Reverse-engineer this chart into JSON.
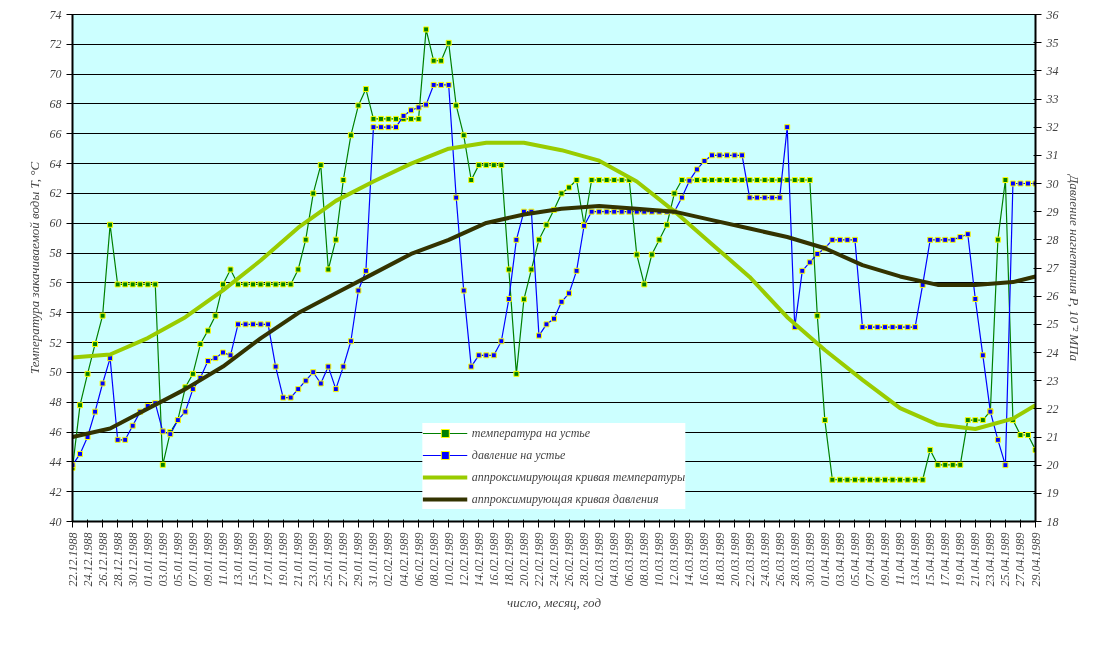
{
  "chart_data": {
    "type": "line",
    "xlabel": "число, месяц, год",
    "ylabel": "Температура закачиваемой воды T, °C",
    "y2label": "Давление нагнетания P, 10⁻² МПа",
    "x": [
      "1988-12-22",
      "1988-12-23",
      "1988-12-24",
      "1988-12-25",
      "1988-12-26",
      "1988-12-27",
      "1988-12-28",
      "1988-12-29",
      "1988-12-30",
      "1988-12-31",
      "1989-01-01",
      "1989-01-02",
      "1989-01-03",
      "1989-01-04",
      "1989-01-05",
      "1989-01-06",
      "1989-01-07",
      "1989-01-08",
      "1989-01-09",
      "1989-01-10",
      "1989-01-11",
      "1989-01-12",
      "1989-01-13",
      "1989-01-14",
      "1989-01-15",
      "1989-01-16",
      "1989-01-17",
      "1989-01-18",
      "1989-01-19",
      "1989-01-20",
      "1989-01-21",
      "1989-01-22",
      "1989-01-23",
      "1989-01-24",
      "1989-01-25",
      "1989-01-26",
      "1989-01-27",
      "1989-01-28",
      "1989-01-29",
      "1989-01-30",
      "1989-01-31",
      "1989-02-01",
      "1989-02-02",
      "1989-02-03",
      "1989-02-04",
      "1989-02-05",
      "1989-02-06",
      "1989-02-07",
      "1989-02-08",
      "1989-02-09",
      "1989-02-10",
      "1989-02-11",
      "1989-02-12",
      "1989-02-13",
      "1989-02-14",
      "1989-02-15",
      "1989-02-16",
      "1989-02-17",
      "1989-02-18",
      "1989-02-19",
      "1989-02-20",
      "1989-02-21",
      "1989-02-22",
      "1989-02-23",
      "1989-02-24",
      "1989-02-25",
      "1989-02-26",
      "1989-02-27",
      "1989-02-28",
      "1989-03-01",
      "1989-03-02",
      "1989-03-03",
      "1989-03-04",
      "1989-03-05",
      "1989-03-06",
      "1989-03-07",
      "1989-03-08",
      "1989-03-09",
      "1989-03-10",
      "1989-03-11",
      "1989-03-12",
      "1989-03-13",
      "1989-03-14",
      "1989-03-15",
      "1989-03-16",
      "1989-03-17",
      "1989-03-18",
      "1989-03-19",
      "1989-03-20",
      "1989-03-21",
      "1989-03-22",
      "1989-03-23",
      "1989-03-24",
      "1989-03-25",
      "1989-03-26",
      "1989-03-27",
      "1989-03-28",
      "1989-03-29",
      "1989-03-30",
      "1989-03-31",
      "1989-04-01",
      "1989-04-02",
      "1989-04-03",
      "1989-04-04",
      "1989-04-05",
      "1989-04-06",
      "1989-04-07",
      "1989-04-08",
      "1989-04-09",
      "1989-04-10",
      "1989-04-11",
      "1989-04-12",
      "1989-04-13",
      "1989-04-14",
      "1989-04-15",
      "1989-04-16",
      "1989-04-17",
      "1989-04-18",
      "1989-04-19",
      "1989-04-20",
      "1989-04-21",
      "1989-04-22",
      "1989-04-23",
      "1989-04-24",
      "1989-04-25",
      "1989-04-26",
      "1989-04-27",
      "1989-04-28",
      "1989-04-29"
    ],
    "series": [
      {
        "name": "температура на устье",
        "color": "#008000",
        "marker": "square",
        "values": [
          43.6,
          47.8,
          49.9,
          51.9,
          53.8,
          59.9,
          55.9,
          55.9,
          55.9,
          55.9,
          55.9,
          55.9,
          43.8,
          46.0,
          46.8,
          49.0,
          49.9,
          51.9,
          52.8,
          53.8,
          55.9,
          56.9,
          55.9,
          55.9,
          55.9,
          55.9,
          55.9,
          55.9,
          55.9,
          55.9,
          56.9,
          58.9,
          62.0,
          63.9,
          56.9,
          58.9,
          62.9,
          65.9,
          67.9,
          69.0,
          67.0,
          67.0,
          67.0,
          67.0,
          67.0,
          67.0,
          67.0,
          73.0,
          70.9,
          70.9,
          72.1,
          67.9,
          65.9,
          62.9,
          63.9,
          63.9,
          63.9,
          63.9,
          56.9,
          49.9,
          54.9,
          56.9,
          58.9,
          59.9,
          60.9,
          62.0,
          62.4,
          62.9,
          59.9,
          62.9,
          62.9,
          62.9,
          62.9,
          62.9,
          62.9,
          57.9,
          55.9,
          57.9,
          58.9,
          59.9,
          62.0,
          62.9,
          62.9,
          62.9,
          62.9,
          62.9,
          62.9,
          62.9,
          62.9,
          62.9,
          62.9,
          62.9,
          62.9,
          62.9,
          62.9,
          62.9,
          62.9,
          62.9,
          62.9,
          53.8,
          46.8,
          42.8,
          42.8,
          42.8,
          42.8,
          42.8,
          42.8,
          42.8,
          42.8,
          42.8,
          42.8,
          42.8,
          42.8,
          42.8,
          44.8,
          43.8,
          43.8,
          43.8,
          43.8,
          46.8,
          46.8,
          46.8,
          47.4,
          58.9,
          62.9,
          46.8,
          45.8,
          45.8,
          44.8
        ]
      },
      {
        "name": "давление на устье",
        "color": "#0000ff",
        "marker": "square",
        "axis": "y2",
        "values": [
          20.0,
          20.4,
          21.0,
          21.9,
          22.9,
          23.8,
          20.9,
          20.9,
          21.4,
          21.9,
          22.1,
          22.2,
          21.2,
          21.1,
          21.6,
          21.9,
          22.7,
          23.1,
          23.7,
          23.8,
          24.0,
          23.9,
          25.0,
          25.0,
          25.0,
          25.0,
          25.0,
          23.5,
          22.4,
          22.4,
          22.7,
          23.0,
          23.3,
          22.9,
          23.5,
          22.7,
          23.5,
          24.4,
          26.2,
          26.9,
          32.0,
          32.0,
          32.0,
          32.0,
          32.4,
          32.6,
          32.7,
          32.8,
          33.5,
          33.5,
          33.5,
          29.5,
          26.2,
          23.5,
          23.9,
          23.9,
          23.9,
          24.4,
          25.9,
          28.0,
          29.0,
          29.0,
          24.6,
          25.0,
          25.2,
          25.8,
          26.1,
          26.9,
          28.5,
          29.0,
          29.0,
          29.0,
          29.0,
          29.0,
          29.0,
          29.0,
          29.0,
          29.0,
          29.0,
          29.0,
          29.0,
          29.5,
          30.1,
          30.5,
          30.8,
          31.0,
          31.0,
          31.0,
          31.0,
          31.0,
          29.5,
          29.5,
          29.5,
          29.5,
          29.5,
          32.0,
          24.9,
          26.9,
          27.2,
          27.5,
          27.7,
          28.0,
          28.0,
          28.0,
          28.0,
          24.9,
          24.9,
          24.9,
          24.9,
          24.9,
          24.9,
          24.9,
          24.9,
          26.4,
          28.0,
          28.0,
          28.0,
          28.0,
          28.1,
          28.2,
          25.9,
          23.9,
          21.9,
          20.9,
          20.0,
          30.0,
          30.0,
          30.0,
          30.0
        ]
      },
      {
        "name": "аппроксимирующая кривая температуры",
        "color": "#99cc00",
        "x": [
          "1988-12-22",
          "1988-12-27",
          "1989-01-01",
          "1989-01-06",
          "1989-01-11",
          "1989-01-16",
          "1989-01-21",
          "1989-01-26",
          "1989-01-31",
          "1989-02-05",
          "1989-02-10",
          "1989-02-15",
          "1989-02-20",
          "1989-02-25",
          "1989-03-02",
          "1989-03-07",
          "1989-03-12",
          "1989-03-17",
          "1989-03-22",
          "1989-03-27",
          "1989-04-01",
          "1989-04-06",
          "1989-04-11",
          "1989-04-16",
          "1989-04-21",
          "1989-04-26",
          "1989-04-29"
        ],
        "values": [
          51.0,
          51.2,
          52.3,
          53.7,
          55.5,
          57.5,
          59.7,
          61.5,
          62.8,
          64.0,
          65.0,
          65.4,
          65.4,
          64.9,
          64.2,
          62.8,
          60.8,
          58.6,
          56.4,
          53.7,
          51.5,
          49.5,
          47.6,
          46.5,
          46.2,
          46.9,
          47.8
        ]
      },
      {
        "name": "аппроксимирующая кривая давления",
        "color": "#333300",
        "axis": "y2",
        "x": [
          "1988-12-22",
          "1988-12-27",
          "1989-01-01",
          "1989-01-06",
          "1989-01-11",
          "1989-01-16",
          "1989-01-21",
          "1989-01-26",
          "1989-01-31",
          "1989-02-05",
          "1989-02-10",
          "1989-02-15",
          "1989-02-20",
          "1989-02-25",
          "1989-03-02",
          "1989-03-07",
          "1989-03-12",
          "1989-03-17",
          "1989-03-22",
          "1989-03-27",
          "1989-04-01",
          "1989-04-06",
          "1989-04-11",
          "1989-04-16",
          "1989-04-21",
          "1989-04-26",
          "1989-04-29"
        ],
        "values": [
          21.0,
          21.3,
          22.0,
          22.7,
          23.5,
          24.5,
          25.4,
          26.1,
          26.8,
          27.5,
          28.0,
          28.6,
          28.9,
          29.1,
          29.2,
          29.1,
          29.0,
          28.7,
          28.4,
          28.1,
          27.7,
          27.1,
          26.7,
          26.4,
          26.4,
          26.5,
          26.7
        ]
      }
    ],
    "xlim": [
      "1988-12-22",
      "1989-04-29"
    ],
    "xticks": [
      {
        "value": "1988-12-22",
        "label": "22.12.1988"
      },
      {
        "value": "1988-12-24",
        "label": "24.12.1988"
      },
      {
        "value": "1988-12-26",
        "label": "26.12.1988"
      },
      {
        "value": "1988-12-28",
        "label": "28.12.1988"
      },
      {
        "value": "1988-12-30",
        "label": "30.12.1988"
      },
      {
        "value": "1989-01-01",
        "label": "01.01.1989"
      },
      {
        "value": "1989-01-03",
        "label": "03.01.1989"
      },
      {
        "value": "1989-01-05",
        "label": "05.01.1989"
      },
      {
        "value": "1989-01-07",
        "label": "07.01.1989"
      },
      {
        "value": "1989-01-09",
        "label": "09.01.1989"
      },
      {
        "value": "1989-01-11",
        "label": "11.01.1989"
      },
      {
        "value": "1989-01-13",
        "label": "13.01.1989"
      },
      {
        "value": "1989-01-15",
        "label": "15.01.1989"
      },
      {
        "value": "1989-01-17",
        "label": "17.01.1989"
      },
      {
        "value": "1989-01-19",
        "label": "19.01.1989"
      },
      {
        "value": "1989-01-21",
        "label": "21.01.1989"
      },
      {
        "value": "1989-01-23",
        "label": "23.01.1989"
      },
      {
        "value": "1989-01-25",
        "label": "25.01.1989"
      },
      {
        "value": "1989-01-27",
        "label": "27.01.1989"
      },
      {
        "value": "1989-01-29",
        "label": "29.01.1989"
      },
      {
        "value": "1989-01-31",
        "label": "31.01.1989"
      },
      {
        "value": "1989-02-02",
        "label": "02.02.1989"
      },
      {
        "value": "1989-02-04",
        "label": "04.02.1989"
      },
      {
        "value": "1989-02-06",
        "label": "06.02.1989"
      },
      {
        "value": "1989-02-08",
        "label": "08.02.1989"
      },
      {
        "value": "1989-02-10",
        "label": "10.02.1989"
      },
      {
        "value": "1989-02-12",
        "label": "12.02.1989"
      },
      {
        "value": "1989-02-14",
        "label": "14.02.1989"
      },
      {
        "value": "1989-02-16",
        "label": "16.02.1989"
      },
      {
        "value": "1989-02-18",
        "label": "18.02.1989"
      },
      {
        "value": "1989-02-20",
        "label": "20.02.1989"
      },
      {
        "value": "1989-02-22",
        "label": "22.02.1989"
      },
      {
        "value": "1989-02-24",
        "label": "24.02.1989"
      },
      {
        "value": "1989-02-26",
        "label": "26.02.1989"
      },
      {
        "value": "1989-02-28",
        "label": "28.02.1989"
      },
      {
        "value": "1989-03-02",
        "label": "02.03.1989"
      },
      {
        "value": "1989-03-04",
        "label": "04.03.1989"
      },
      {
        "value": "1989-03-06",
        "label": "06.03.1989"
      },
      {
        "value": "1989-03-08",
        "label": "08.03.1989"
      },
      {
        "value": "1989-03-10",
        "label": "10.03.1989"
      },
      {
        "value": "1989-03-12",
        "label": "12.03.1989"
      },
      {
        "value": "1989-03-14",
        "label": "14.03.1989"
      },
      {
        "value": "1989-03-16",
        "label": "16.03.1989"
      },
      {
        "value": "1989-03-18",
        "label": "18.03.1989"
      },
      {
        "value": "1989-03-20",
        "label": "20.03.1989"
      },
      {
        "value": "1989-03-22",
        "label": "22.03.1989"
      },
      {
        "value": "1989-03-24",
        "label": "24.03.1989"
      },
      {
        "value": "1989-03-26",
        "label": "26.03.1989"
      },
      {
        "value": "1989-03-28",
        "label": "28.03.1989"
      },
      {
        "value": "1989-03-30",
        "label": "30.03.1989"
      },
      {
        "value": "1989-04-01",
        "label": "01.04.1989"
      },
      {
        "value": "1989-04-03",
        "label": "03.04.1989"
      },
      {
        "value": "1989-04-05",
        "label": "05.04.1989"
      },
      {
        "value": "1989-04-07",
        "label": "07.04.1989"
      },
      {
        "value": "1989-04-09",
        "label": "09.04.1989"
      },
      {
        "value": "1989-04-11",
        "label": "11.04.1989"
      },
      {
        "value": "1989-04-13",
        "label": "13.04.1989"
      },
      {
        "value": "1989-04-15",
        "label": "15.04.1989"
      },
      {
        "value": "1989-04-17",
        "label": "17.04.1989"
      },
      {
        "value": "1989-04-19",
        "label": "19.04.1989"
      },
      {
        "value": "1989-04-21",
        "label": "21.04.1989"
      },
      {
        "value": "1989-04-23",
        "label": "23.04.1989"
      },
      {
        "value": "1989-04-25",
        "label": "25.04.1989"
      },
      {
        "value": "1989-04-27",
        "label": "27.04.1989"
      },
      {
        "value": "1989-04-29",
        "label": "29.04.1989"
      }
    ],
    "ylim": [
      40,
      74
    ],
    "yticks": [
      40,
      42,
      44,
      46,
      48,
      50,
      52,
      54,
      56,
      58,
      60,
      62,
      64,
      66,
      68,
      70,
      72,
      74
    ],
    "y2lim": [
      18,
      36
    ],
    "y2ticks": [
      18,
      19,
      20,
      21,
      22,
      23,
      24,
      25,
      26,
      27,
      28,
      29,
      30,
      31,
      32,
      33,
      34,
      35,
      36
    ],
    "grid": "y",
    "legend": "bottom"
  }
}
